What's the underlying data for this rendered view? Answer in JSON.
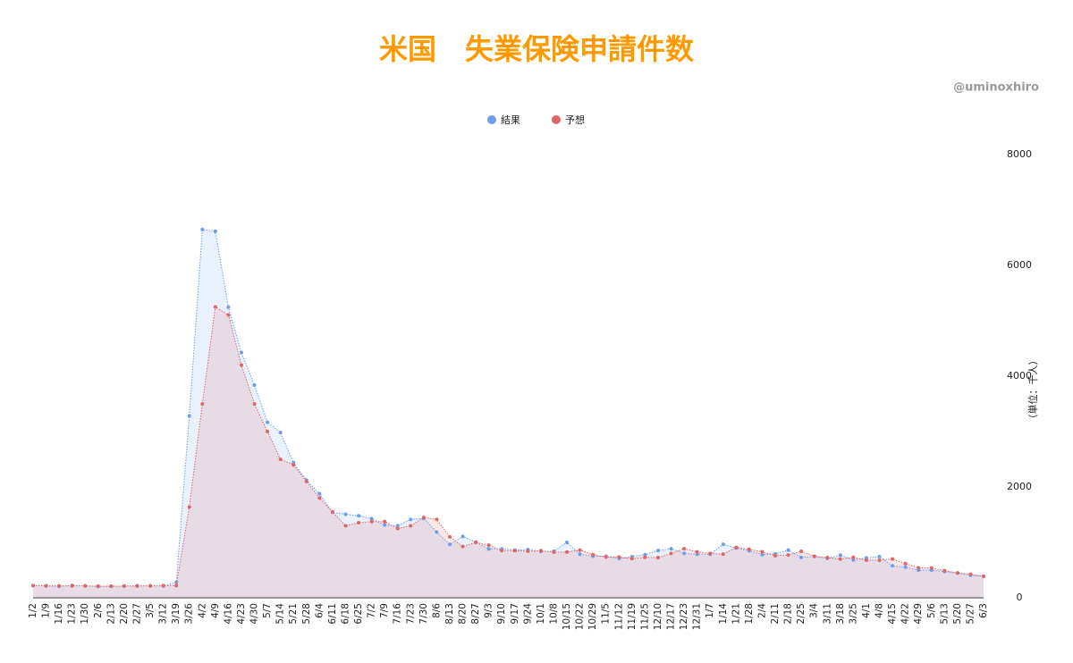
{
  "chart_data": {
    "type": "line",
    "title": "米国　失業保険申請件数",
    "watermark": "@uminoxhiro",
    "y_axis_label": "（単位：千人）",
    "categories": [
      "1/2",
      "1/9",
      "1/16",
      "1/23",
      "1/30",
      "2/6",
      "2/13",
      "2/20",
      "2/27",
      "3/5",
      "3/12",
      "3/19",
      "3/26",
      "4/2",
      "4/9",
      "4/16",
      "4/23",
      "4/30",
      "5/7",
      "5/14",
      "5/21",
      "5/28",
      "6/4",
      "6/11",
      "6/18",
      "6/25",
      "7/2",
      "7/9",
      "7/16",
      "7/23",
      "7/30",
      "8/6",
      "8/13",
      "8/20",
      "8/27",
      "9/3",
      "9/10",
      "9/17",
      "9/24",
      "10/1",
      "10/8",
      "10/15",
      "10/22",
      "10/29",
      "11/5",
      "11/12",
      "11/19",
      "11/25",
      "12/10",
      "12/17",
      "12/23",
      "12/31",
      "1/7",
      "1/14",
      "1/21",
      "1/28",
      "2/4",
      "2/11",
      "2/18",
      "2/25",
      "3/4",
      "3/11",
      "3/18",
      "3/25",
      "4/1",
      "4/8",
      "4/15",
      "4/22",
      "4/29",
      "5/6",
      "5/13",
      "5/20",
      "5/27",
      "6/3"
    ],
    "series": [
      {
        "name": "結果",
        "color": "#6d9eeb",
        "fill": "rgba(109,158,235,0.15)",
        "values": [
          220,
          214,
          204,
          223,
          216,
          202,
          205,
          210,
          219,
          216,
          211,
          281,
          3283,
          6648,
          6615,
          5245,
          4427,
          3839,
          3169,
          2981,
          2438,
          2123,
          1877,
          1542,
          1508,
          1480,
          1427,
          1314,
          1300,
          1416,
          1434,
          1186,
          963,
          1106,
          1006,
          881,
          884,
          860,
          870,
          837,
          840,
          1000,
          787,
          751,
          751,
          709,
          742,
          778,
          853,
          885,
          803,
          787,
          787,
          965,
          900,
          847,
          779,
          793,
          861,
          730,
          745,
          712,
          770,
          684,
          719,
          744,
          576,
          553,
          498,
          498,
          473,
          444,
          406,
          385
        ]
      },
      {
        "name": "予想",
        "color": "#e06666",
        "fill": "rgba(224,102,102,0.15)",
        "values": [
          220,
          216,
          216,
          215,
          215,
          210,
          210,
          211,
          212,
          215,
          219,
          220,
          1640,
          3500,
          5250,
          5105,
          4200,
          3500,
          3000,
          2500,
          2400,
          2100,
          1800,
          1550,
          1300,
          1355,
          1375,
          1375,
          1250,
          1300,
          1450,
          1415,
          1100,
          925,
          1000,
          950,
          850,
          850,
          840,
          850,
          825,
          825,
          860,
          778,
          735,
          735,
          707,
          730,
          725,
          800,
          885,
          828,
          800,
          789,
          910,
          875,
          830,
          760,
          773,
          838,
          750,
          725,
          700,
          730,
          680,
          680,
          700,
          617,
          540,
          538,
          490,
          450,
          425,
          390
        ]
      }
    ],
    "ylim": [
      0,
      8000
    ],
    "yticks": [
      0,
      2000,
      4000,
      6000,
      8000
    ],
    "y_axis_side": "right"
  }
}
